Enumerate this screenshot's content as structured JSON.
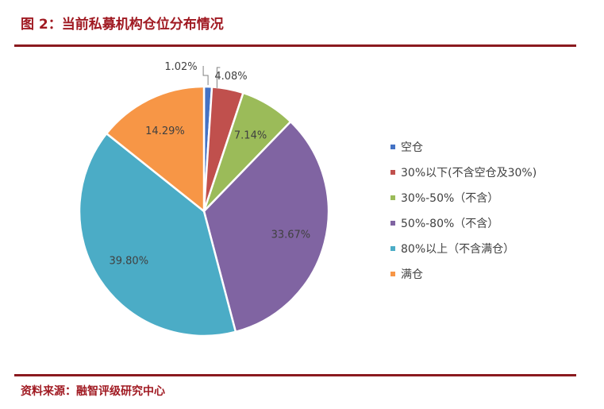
{
  "header": {
    "title": "图 2：当前私募机构仓位分布情况"
  },
  "footer": {
    "source": "资料来源：融智评级研究中心"
  },
  "chart_data": {
    "type": "pie",
    "title": "",
    "slices": [
      {
        "label": "空仓",
        "value": 1.02,
        "display": "1.02%",
        "color": "#4472c4"
      },
      {
        "label": "30%以下(不含空仓及30%)",
        "value": 4.08,
        "display": "4.08%",
        "color": "#c0504d"
      },
      {
        "label": "30%-50%（不含）",
        "value": 7.14,
        "display": "7.14%",
        "color": "#9bbb59"
      },
      {
        "label": "50%-80%（不含）",
        "value": 33.67,
        "display": "33.67%",
        "color": "#8064a2"
      },
      {
        "label": "80%以上（不含满仓）",
        "value": 39.8,
        "display": "39.80%",
        "color": "#4bacc6"
      },
      {
        "label": "满仓",
        "value": 14.29,
        "display": "14.29%",
        "color": "#f79646"
      }
    ],
    "legend_position": "right"
  }
}
